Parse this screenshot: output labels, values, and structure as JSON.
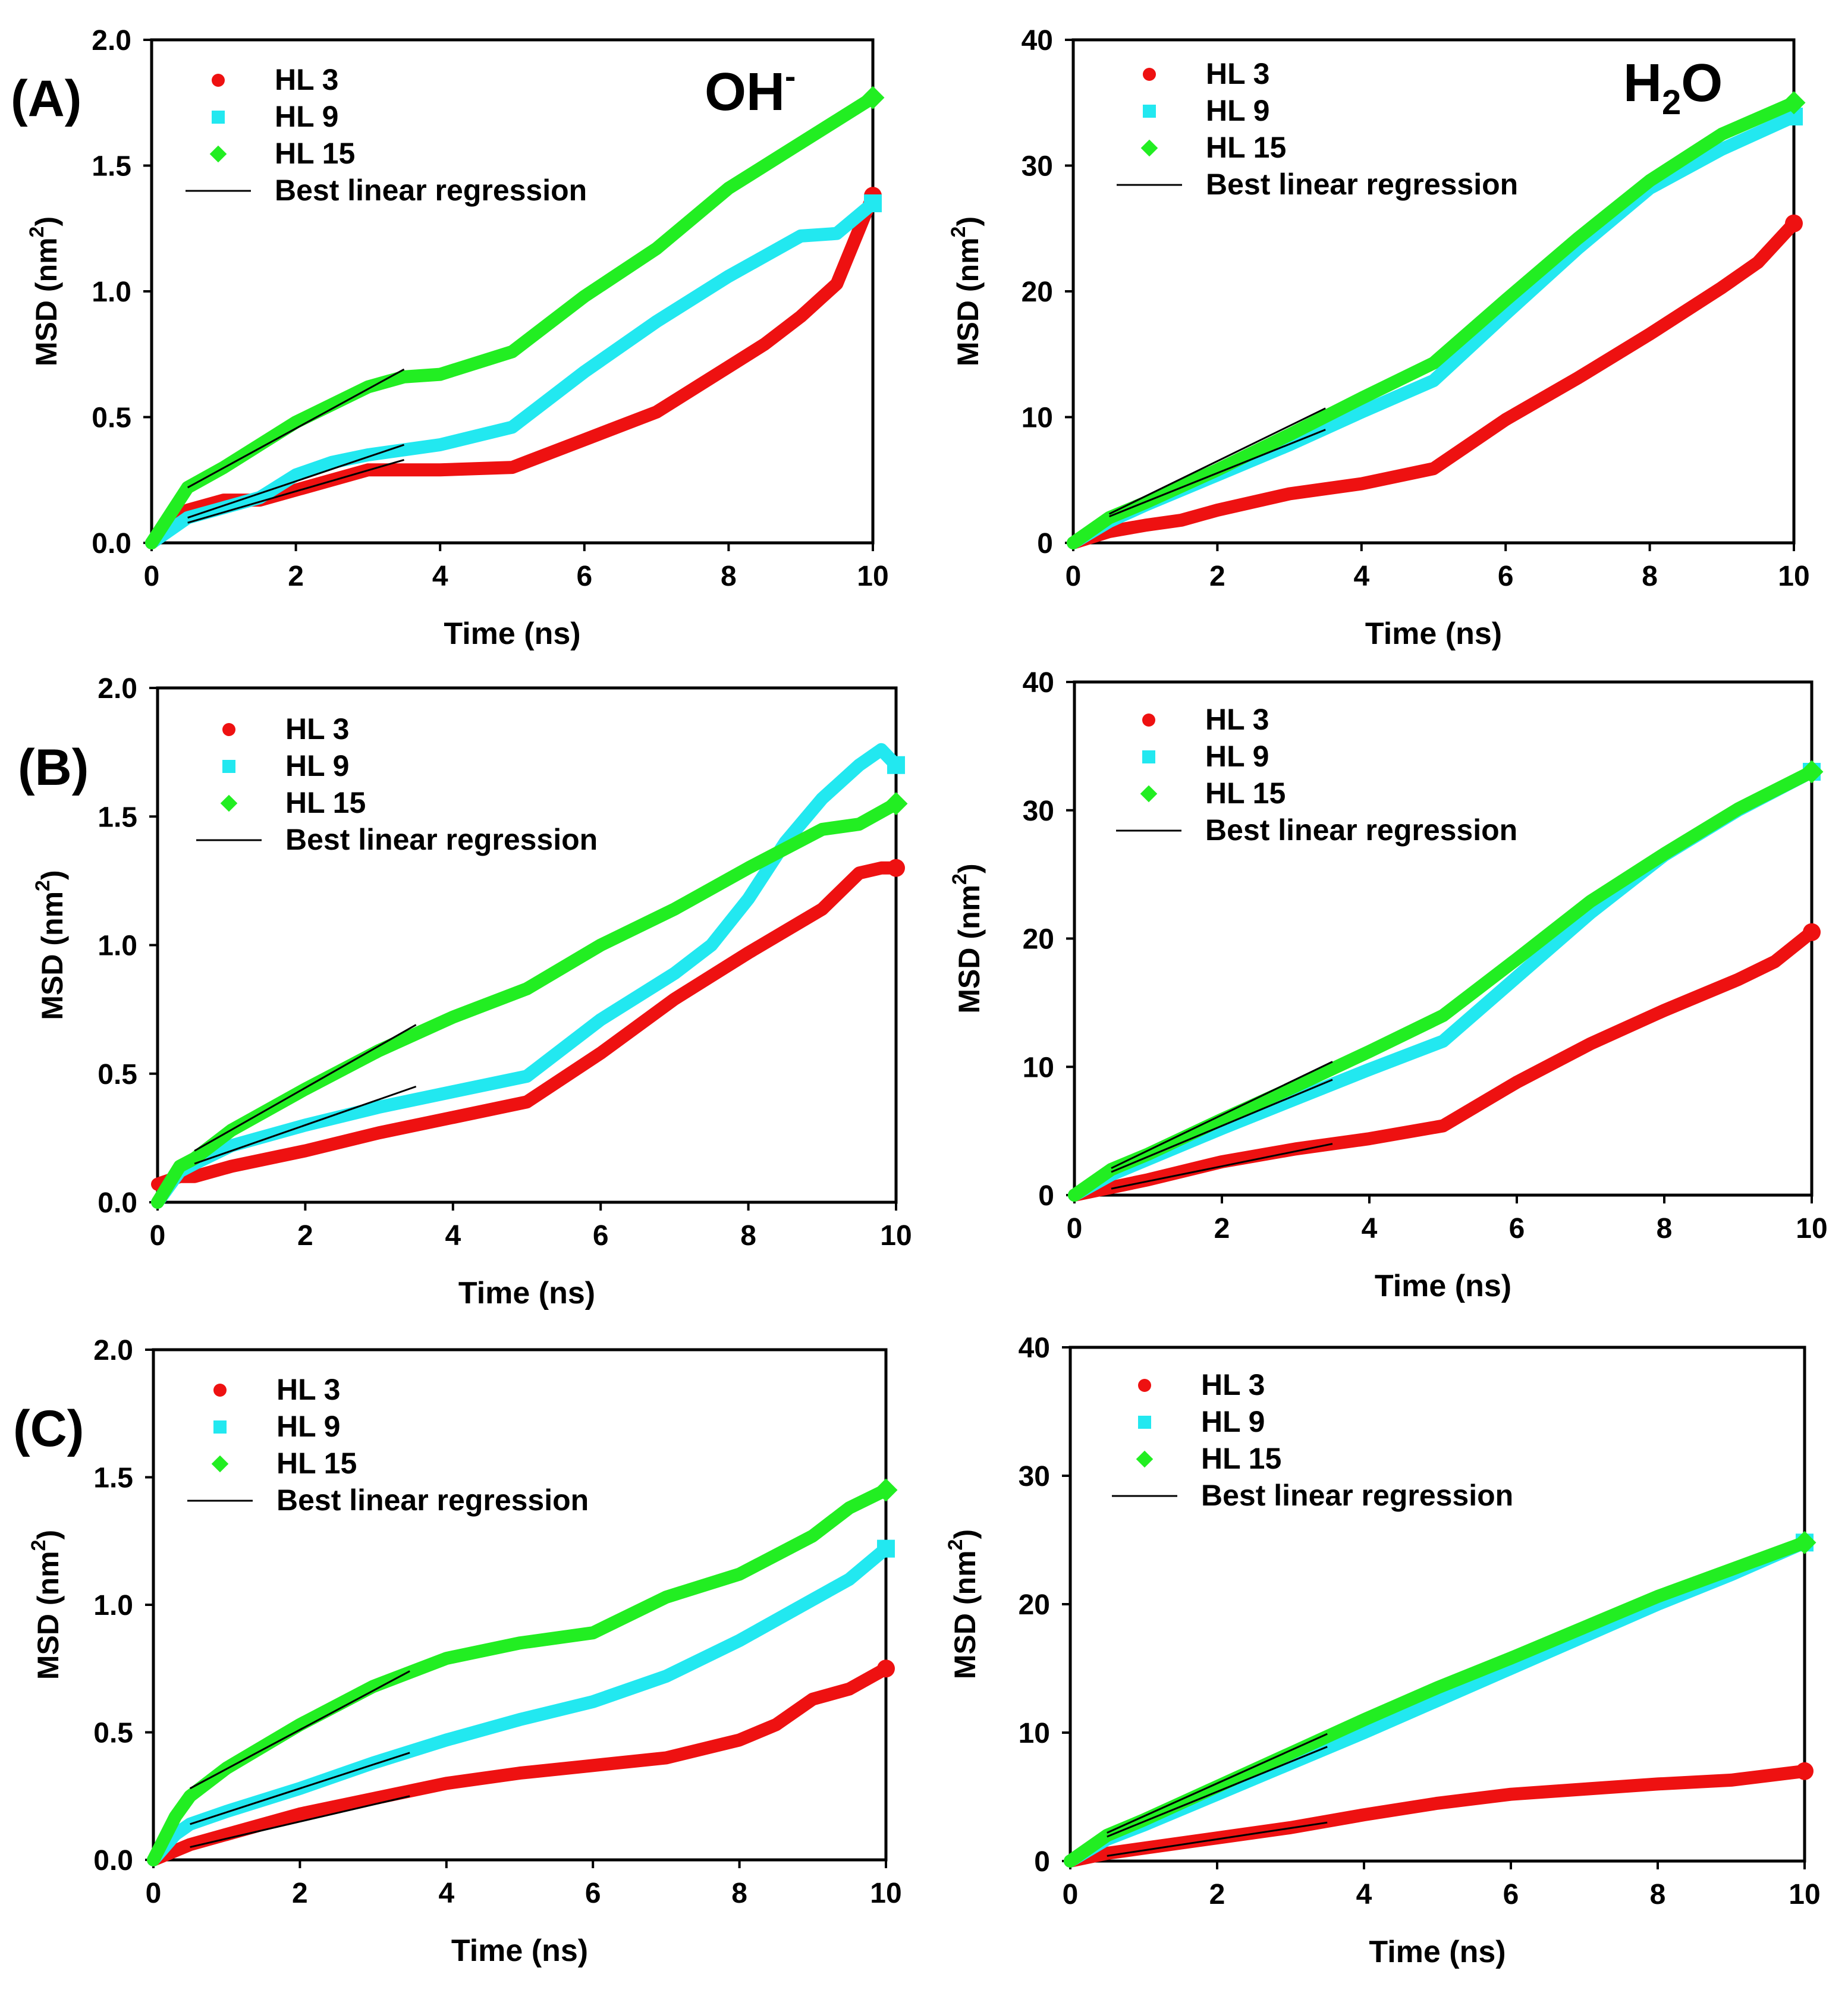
{
  "colors": {
    "hl3": "#ee1111",
    "hl9": "#22e8f0",
    "hl15": "#22ee22",
    "regression": "#000000"
  },
  "row_labels": [
    "(A)",
    "(B)",
    "(C)"
  ],
  "column_labels": {
    "oh": {
      "base": "OH",
      "sup": "-"
    },
    "h2o": {
      "pre": "H",
      "sub": "2",
      "post": "O"
    }
  },
  "legend": {
    "hl3": "HL 3",
    "hl9": "HL 9",
    "hl15": "HL 15",
    "regression": "Best linear regression"
  },
  "axis_text": {
    "xlabel": "Time (ns)",
    "ylabel_main": "MSD (nm",
    "ylabel_sup": "2",
    "ylabel_close": ")"
  },
  "chart_data": [
    {
      "id": "A-OH",
      "type": "line",
      "xlabel": "Time (ns)",
      "ylabel": "MSD (nm2)",
      "xlim": [
        0,
        10
      ],
      "ylim": [
        0,
        2.0
      ],
      "xticks": [
        "0",
        "2",
        "4",
        "6",
        "8",
        "10"
      ],
      "yticks": [
        "0.0",
        "0.5",
        "1.0",
        "1.5",
        "2.0"
      ],
      "legend_position": "top-left",
      "series": [
        {
          "name": "HL 3",
          "marker": "circle",
          "x": [
            0,
            0.5,
            1,
            1.5,
            2,
            3,
            4,
            5,
            6,
            7,
            8,
            8.5,
            9,
            9.5,
            10
          ],
          "y": [
            0,
            0.13,
            0.17,
            0.17,
            0.21,
            0.29,
            0.29,
            0.3,
            0.41,
            0.52,
            0.7,
            0.79,
            0.9,
            1.03,
            1.38
          ]
        },
        {
          "name": "HL 9",
          "marker": "square",
          "x": [
            0,
            0.5,
            1,
            1.5,
            2,
            2.5,
            3,
            4,
            5,
            6,
            7,
            8,
            8.5,
            9,
            9.5,
            10
          ],
          "y": [
            0,
            0.1,
            0.14,
            0.18,
            0.27,
            0.32,
            0.35,
            0.39,
            0.46,
            0.68,
            0.88,
            1.06,
            1.14,
            1.22,
            1.23,
            1.35
          ]
        },
        {
          "name": "HL 15",
          "marker": "diamond",
          "x": [
            0,
            0.5,
            1,
            1.5,
            2,
            2.5,
            3,
            3.5,
            4,
            5,
            6,
            7,
            8,
            9,
            9.5,
            10
          ],
          "y": [
            0,
            0.22,
            0.3,
            0.39,
            0.48,
            0.55,
            0.62,
            0.66,
            0.67,
            0.76,
            0.98,
            1.17,
            1.41,
            1.59,
            1.68,
            1.77
          ]
        }
      ],
      "regressions": [
        {
          "series": "HL 15",
          "x": [
            0.5,
            3.5
          ],
          "y": [
            0.22,
            0.69
          ]
        },
        {
          "series": "HL 9",
          "x": [
            0.5,
            3.5
          ],
          "y": [
            0.1,
            0.39
          ]
        },
        {
          "series": "HL 3",
          "x": [
            0.5,
            3.5
          ],
          "y": [
            0.08,
            0.33
          ]
        }
      ]
    },
    {
      "id": "A-H2O",
      "type": "line",
      "xlabel": "Time (ns)",
      "ylabel": "MSD (nm2)",
      "xlim": [
        0,
        10
      ],
      "ylim": [
        0,
        40
      ],
      "xticks": [
        "0",
        "2",
        "4",
        "6",
        "8",
        "10"
      ],
      "yticks": [
        "0",
        "10",
        "20",
        "30",
        "40"
      ],
      "legend_position": "top-left",
      "series": [
        {
          "name": "HL 3",
          "marker": "circle",
          "x": [
            0,
            0.5,
            1,
            1.5,
            2,
            3,
            4,
            5,
            6,
            7,
            8,
            9,
            9.5,
            10
          ],
          "y": [
            0,
            0.9,
            1.4,
            1.8,
            2.6,
            3.9,
            4.7,
            5.9,
            9.8,
            13.1,
            16.6,
            20.3,
            22.3,
            25.4
          ]
        },
        {
          "name": "HL 9",
          "marker": "square",
          "x": [
            0,
            0.5,
            1,
            2,
            3,
            4,
            5,
            6,
            7,
            8,
            9,
            10
          ],
          "y": [
            0,
            1.7,
            3.0,
            5.4,
            7.8,
            10.4,
            12.9,
            18.2,
            23.4,
            28.2,
            31.3,
            33.9
          ]
        },
        {
          "name": "HL 15",
          "marker": "diamond",
          "x": [
            0,
            0.5,
            1,
            2,
            3,
            4,
            5,
            6,
            7,
            8,
            9,
            10
          ],
          "y": [
            0,
            2.0,
            3.2,
            5.8,
            8.6,
            11.5,
            14.3,
            19.3,
            24.2,
            28.8,
            32.5,
            35.0
          ]
        }
      ],
      "regressions": [
        {
          "series": "HL 15",
          "x": [
            0.5,
            3.5
          ],
          "y": [
            2.3,
            10.7
          ]
        },
        {
          "series": "HL 9",
          "x": [
            0.5,
            3.5
          ],
          "y": [
            2.1,
            9.0
          ]
        }
      ]
    },
    {
      "id": "B-OH",
      "type": "line",
      "xlabel": "Time (ns)",
      "ylabel": "MSD (nm2)",
      "xlim": [
        0,
        10
      ],
      "ylim": [
        0,
        2.0
      ],
      "xticks": [
        "0",
        "2",
        "4",
        "6",
        "8",
        "10"
      ],
      "yticks": [
        "0.0",
        "0.5",
        "1.0",
        "1.5",
        "2.0"
      ],
      "legend_position": "top-left",
      "series": [
        {
          "name": "HL 3",
          "marker": "circle",
          "x": [
            0,
            0.3,
            0.5,
            1,
            2,
            3,
            4,
            5,
            6,
            7,
            8,
            9,
            9.5,
            9.8,
            10
          ],
          "y": [
            0.07,
            0.1,
            0.1,
            0.14,
            0.2,
            0.27,
            0.33,
            0.39,
            0.58,
            0.79,
            0.97,
            1.14,
            1.28,
            1.3,
            1.3
          ]
        },
        {
          "name": "HL 9",
          "marker": "square",
          "x": [
            0,
            0.3,
            0.5,
            1,
            2,
            3,
            4,
            5,
            6,
            7,
            7.5,
            8,
            8.5,
            9,
            9.5,
            9.8,
            10
          ],
          "y": [
            0,
            0.12,
            0.15,
            0.22,
            0.3,
            0.37,
            0.43,
            0.49,
            0.71,
            0.89,
            1.0,
            1.18,
            1.4,
            1.57,
            1.7,
            1.76,
            1.7
          ]
        },
        {
          "name": "HL 15",
          "marker": "diamond",
          "x": [
            0,
            0.3,
            0.5,
            1,
            2,
            3,
            4,
            5,
            6,
            7,
            8,
            9,
            9.5,
            10
          ],
          "y": [
            0,
            0.14,
            0.17,
            0.28,
            0.44,
            0.59,
            0.72,
            0.83,
            1.0,
            1.14,
            1.3,
            1.45,
            1.47,
            1.55
          ]
        }
      ],
      "regressions": [
        {
          "series": "HL 15",
          "x": [
            0.5,
            3.5
          ],
          "y": [
            0.2,
            0.69
          ]
        },
        {
          "series": "HL 9",
          "x": [
            0.5,
            3.5
          ],
          "y": [
            0.15,
            0.45
          ]
        }
      ]
    },
    {
      "id": "B-H2O",
      "type": "line",
      "xlabel": "Time (ns)",
      "ylabel": "MSD (nm2)",
      "xlim": [
        0,
        10
      ],
      "ylim": [
        0,
        40
      ],
      "xticks": [
        "0",
        "2",
        "4",
        "6",
        "8",
        "10"
      ],
      "yticks": [
        "0",
        "10",
        "20",
        "30",
        "40"
      ],
      "legend_position": "top-left",
      "series": [
        {
          "name": "HL 3",
          "marker": "circle",
          "x": [
            0,
            0.5,
            1,
            2,
            3,
            4,
            5,
            6,
            7,
            8,
            9,
            9.5,
            10
          ],
          "y": [
            0,
            0.6,
            1.2,
            2.6,
            3.6,
            4.4,
            5.4,
            8.8,
            11.8,
            14.4,
            16.8,
            18.2,
            20.5
          ]
        },
        {
          "name": "HL 9",
          "marker": "square",
          "x": [
            0,
            0.5,
            1,
            2,
            3,
            4,
            5,
            6,
            7,
            8,
            9,
            10
          ],
          "y": [
            0,
            1.6,
            2.8,
            5.2,
            7.5,
            9.8,
            12.0,
            17.0,
            22.0,
            26.5,
            30.0,
            33.0
          ]
        },
        {
          "name": "HL 15",
          "marker": "diamond",
          "x": [
            0,
            0.5,
            1,
            2,
            3,
            4,
            5,
            6,
            7,
            8,
            9,
            10
          ],
          "y": [
            0,
            2.0,
            3.2,
            5.9,
            8.5,
            11.2,
            14.0,
            18.4,
            22.9,
            26.6,
            30.1,
            33.0
          ]
        }
      ],
      "regressions": [
        {
          "series": "HL 15",
          "x": [
            0.5,
            3.5
          ],
          "y": [
            2.1,
            10.4
          ]
        },
        {
          "series": "HL 9",
          "x": [
            0.5,
            3.5
          ],
          "y": [
            1.8,
            9.0
          ]
        },
        {
          "series": "HL 3",
          "x": [
            0.5,
            3.5
          ],
          "y": [
            0.5,
            4.0
          ]
        }
      ]
    },
    {
      "id": "C-OH",
      "type": "line",
      "xlabel": "Time (ns)",
      "ylabel": "MSD (nm2)",
      "xlim": [
        0,
        10
      ],
      "ylim": [
        0,
        2.0
      ],
      "xticks": [
        "0",
        "2",
        "4",
        "6",
        "8",
        "10"
      ],
      "yticks": [
        "0.0",
        "0.5",
        "1.0",
        "1.5",
        "2.0"
      ],
      "legend_position": "top-left",
      "series": [
        {
          "name": "HL 3",
          "marker": "circle",
          "x": [
            0,
            0.5,
            1,
            2,
            3,
            4,
            5,
            6,
            7,
            8,
            8.5,
            9,
            9.5,
            10
          ],
          "y": [
            0,
            0.06,
            0.1,
            0.18,
            0.24,
            0.3,
            0.34,
            0.37,
            0.4,
            0.47,
            0.53,
            0.63,
            0.67,
            0.75
          ]
        },
        {
          "name": "HL 9",
          "marker": "square",
          "x": [
            0,
            0.3,
            0.5,
            1,
            2,
            3,
            4,
            5,
            6,
            7,
            8,
            9,
            9.5,
            10
          ],
          "y": [
            0,
            0.1,
            0.14,
            0.19,
            0.28,
            0.38,
            0.47,
            0.55,
            0.62,
            0.72,
            0.86,
            1.02,
            1.1,
            1.22
          ]
        },
        {
          "name": "HL 15",
          "marker": "diamond",
          "x": [
            0,
            0.3,
            0.5,
            1,
            2,
            3,
            4,
            5,
            6,
            7,
            8,
            9,
            9.5,
            10
          ],
          "y": [
            0,
            0.17,
            0.25,
            0.36,
            0.53,
            0.68,
            0.79,
            0.85,
            0.89,
            1.03,
            1.12,
            1.27,
            1.38,
            1.45
          ]
        }
      ],
      "regressions": [
        {
          "series": "HL 15",
          "x": [
            0.5,
            3.5
          ],
          "y": [
            0.28,
            0.74
          ]
        },
        {
          "series": "HL 9",
          "x": [
            0.5,
            3.5
          ],
          "y": [
            0.14,
            0.42
          ]
        },
        {
          "series": "HL 3",
          "x": [
            0.5,
            3.5
          ],
          "y": [
            0.05,
            0.25
          ]
        }
      ]
    },
    {
      "id": "C-H2O",
      "type": "line",
      "xlabel": "Time (ns)",
      "ylabel": "MSD (nm2)",
      "xlim": [
        0,
        10
      ],
      "ylim": [
        0,
        40
      ],
      "xticks": [
        "0",
        "2",
        "4",
        "6",
        "8",
        "10"
      ],
      "yticks": [
        "0",
        "10",
        "20",
        "30",
        "40"
      ],
      "legend_position": "top-left",
      "series": [
        {
          "name": "HL 3",
          "marker": "circle",
          "x": [
            0,
            0.5,
            1,
            2,
            3,
            4,
            5,
            6,
            7,
            8,
            9,
            10
          ],
          "y": [
            0,
            0.6,
            1.0,
            1.8,
            2.6,
            3.6,
            4.5,
            5.2,
            5.6,
            6.0,
            6.3,
            7.0
          ]
        },
        {
          "name": "HL 9",
          "marker": "square",
          "x": [
            0,
            0.5,
            1,
            2,
            3,
            4,
            5,
            6,
            7,
            8,
            9,
            10
          ],
          "y": [
            0,
            1.7,
            2.8,
            5.2,
            7.6,
            10.0,
            12.5,
            15.0,
            17.5,
            20.0,
            22.3,
            24.8
          ]
        },
        {
          "name": "HL 15",
          "marker": "diamond",
          "x": [
            0,
            0.5,
            1,
            2,
            3,
            4,
            5,
            6,
            7,
            8,
            9,
            10
          ],
          "y": [
            0,
            2.0,
            3.2,
            5.8,
            8.4,
            11.0,
            13.5,
            15.8,
            18.2,
            20.6,
            22.7,
            24.8
          ]
        }
      ],
      "regressions": [
        {
          "series": "HL 15",
          "x": [
            0.5,
            3.5
          ],
          "y": [
            2.2,
            9.9
          ]
        },
        {
          "series": "HL 9",
          "x": [
            0.5,
            3.5
          ],
          "y": [
            1.9,
            8.9
          ]
        },
        {
          "series": "HL 3",
          "x": [
            0.5,
            3.5
          ],
          "y": [
            0.4,
            3.0
          ]
        }
      ]
    }
  ]
}
